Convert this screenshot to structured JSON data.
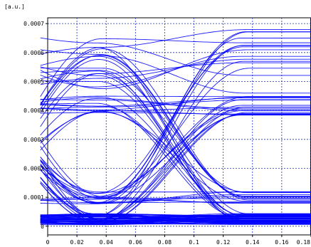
{
  "chart_data": {
    "type": "line",
    "title": "",
    "xlabel": "",
    "ylabel": "[a.u.]",
    "xlim": [
      0,
      0.18
    ],
    "ylim": [
      -3e-05,
      0.00072
    ],
    "grid": true,
    "x_ticks": [
      "0",
      "0.02",
      "0.04",
      "0.06",
      "0.08",
      "0.1",
      "0.12",
      "0.14",
      "0.16",
      "0.18"
    ],
    "y_ticks": [
      "0",
      "0.0001",
      "0.0002",
      "0.0003",
      "0.0004",
      "0.0005",
      "0.0006",
      "0.0007"
    ],
    "unit_interval": 0.1,
    "eye_center_x": [
      0.035,
      0.135
    ],
    "crossing_x": [
      0.085
    ],
    "levels": {
      "zero_band": [
        5e-06,
        4.5e-05
      ],
      "zero_upper": [
        7e-05,
        0.00012
      ],
      "one_low": [
        0.00038,
        0.00045
      ],
      "one_peak": [
        0.00045,
        0.00069
      ]
    },
    "line_color": "#0000ff"
  }
}
